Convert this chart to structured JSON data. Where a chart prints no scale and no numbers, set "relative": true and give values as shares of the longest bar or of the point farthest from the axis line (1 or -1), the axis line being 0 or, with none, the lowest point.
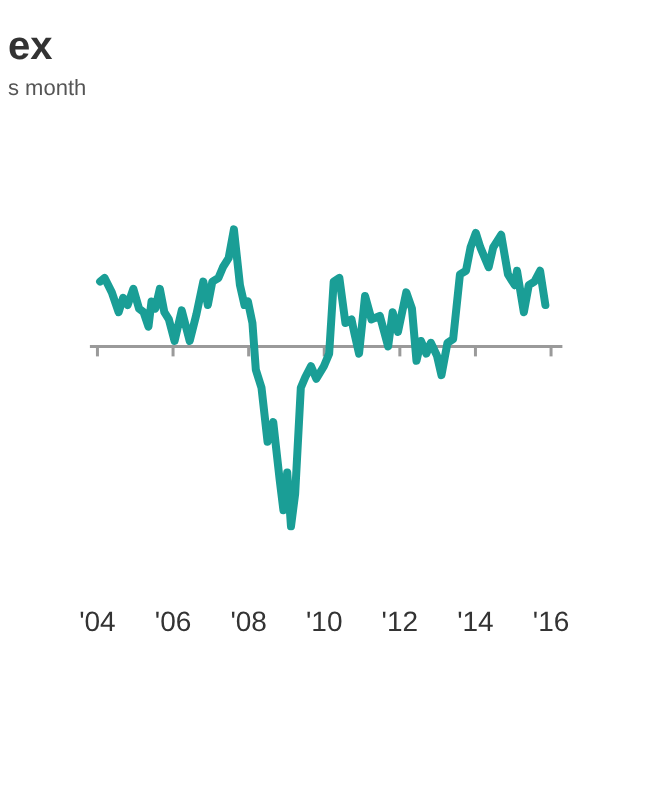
{
  "chart_data": {
    "type": "line",
    "title": "ex",
    "subtitle": "s month",
    "relative": true,
    "legend": false,
    "grid": false,
    "marker": "none",
    "line_style": "solid",
    "xlim": [
      2003.8,
      2016.3
    ],
    "xticks": [
      {
        "value": 2004,
        "label": "'04"
      },
      {
        "value": 2006,
        "label": "'06"
      },
      {
        "value": 2008,
        "label": "'08"
      },
      {
        "value": 2010,
        "label": "'10"
      },
      {
        "value": 2012,
        "label": "'12"
      },
      {
        "value": 2014,
        "label": "'14"
      },
      {
        "value": 2016,
        "label": "'16"
      }
    ],
    "series": [
      {
        "color": "#1a9e96",
        "x": [
          2004.07,
          2004.19,
          2004.38,
          2004.56,
          2004.68,
          2004.8,
          2004.95,
          2005.1,
          2005.22,
          2005.35,
          2005.43,
          2005.53,
          2005.65,
          2005.77,
          2005.89,
          2006.04,
          2006.23,
          2006.44,
          2006.62,
          2006.8,
          2006.92,
          2007.04,
          2007.2,
          2007.32,
          2007.47,
          2007.61,
          2007.77,
          2007.89,
          2007.98,
          2008.1,
          2008.19,
          2008.34,
          2008.5,
          2008.65,
          2008.82,
          2008.92,
          2009.02,
          2009.12,
          2009.23,
          2009.38,
          2009.5,
          2009.65,
          2009.79,
          2009.99,
          2010.13,
          2010.25,
          2010.4,
          2010.56,
          2010.72,
          2010.8,
          2010.92,
          2011.08,
          2011.25,
          2011.47,
          2011.69,
          2011.81,
          2011.95,
          2012.17,
          2012.32,
          2012.44,
          2012.56,
          2012.7,
          2012.82,
          2012.98,
          2013.1,
          2013.26,
          2013.41,
          2013.59,
          2013.75,
          2013.87,
          2014.01,
          2014.13,
          2014.35,
          2014.47,
          2014.68,
          2014.86,
          2015.04,
          2015.1,
          2015.28,
          2015.41,
          2015.56,
          2015.71,
          2015.85
        ],
        "values": [
          0.36,
          0.38,
          0.3,
          0.19,
          0.27,
          0.23,
          0.32,
          0.21,
          0.19,
          0.11,
          0.25,
          0.21,
          0.32,
          0.19,
          0.15,
          0.03,
          0.2,
          0.03,
          0.18,
          0.36,
          0.23,
          0.36,
          0.38,
          0.44,
          0.49,
          0.65,
          0.34,
          0.23,
          0.25,
          0.13,
          -0.13,
          -0.23,
          -0.53,
          -0.42,
          -0.74,
          -0.91,
          -0.7,
          -1,
          -0.82,
          -0.23,
          -0.17,
          -0.11,
          -0.18,
          -0.11,
          -0.04,
          0.36,
          0.38,
          0.13,
          0.15,
          0.07,
          -0.04,
          0.28,
          0.15,
          0.17,
          0,
          0.19,
          0.08,
          0.3,
          0.21,
          -0.08,
          0.03,
          -0.04,
          0.02,
          -0.05,
          -0.16,
          0.02,
          0.04,
          0.4,
          0.42,
          0.55,
          0.63,
          0.55,
          0.44,
          0.55,
          0.62,
          0.4,
          0.34,
          0.42,
          0.19,
          0.34,
          0.36,
          0.42,
          0.23
        ]
      }
    ]
  }
}
